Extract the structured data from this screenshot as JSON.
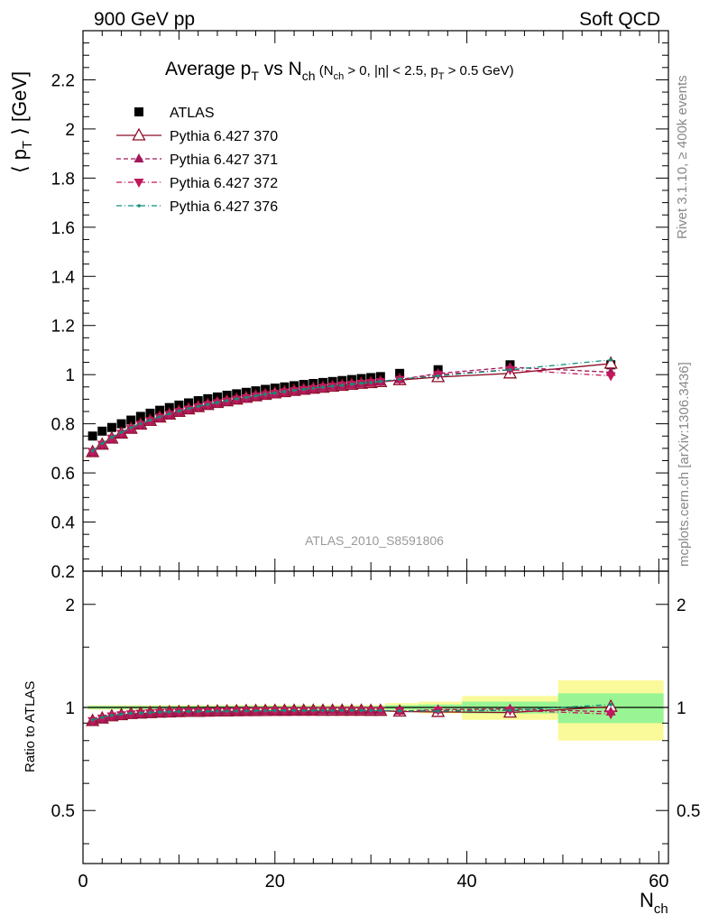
{
  "header": {
    "left": "900 GeV pp",
    "right": "Soft QCD"
  },
  "title": {
    "main": "Average p",
    "main_sub": "T",
    "vs": " vs N",
    "vs_sub": "ch",
    "cuts_open": " (N",
    "cuts_sub1": "ch",
    "cuts_mid": " > 0, |η| < 2.5, p",
    "cuts_sub2": "T",
    "cuts_close": " > 0.5 GeV)"
  },
  "side_labels": {
    "rivet": "Rivet 3.1.10, ≥ 400k events",
    "mcplots": "mcplots.cern.ch [arXiv:1306.3436]"
  },
  "watermark": "ATLAS_2010_S8591806",
  "axes": {
    "main_ylabel_a": "⟨ p",
    "main_ylabel_sub": "T",
    "main_ylabel_b": " ⟩ [GeV]",
    "ratio_ylabel": "Ratio to ATLAS",
    "xlabel": "N",
    "xlabel_sub": "ch",
    "main_yticks": [
      "0.2",
      "0.4",
      "0.6",
      "0.8",
      "1",
      "1.2",
      "1.4",
      "1.6",
      "1.8",
      "2",
      "2.2"
    ],
    "ratio_yticks": [
      "0.5",
      "1",
      "2"
    ],
    "xticks": [
      "0",
      "20",
      "40",
      "60"
    ]
  },
  "colors": {
    "atlas": "#000000",
    "p370": "#8b0d25",
    "p371": "#a3185a",
    "p372": "#c2185b",
    "p376": "#0f8f7a",
    "band_inner": "#99f593",
    "band_outer": "#fbfa9a"
  },
  "chart_data": {
    "type": "scatter",
    "xlim": [
      0,
      61
    ],
    "ylim": [
      0.2,
      2.4
    ],
    "ratio_ylim": [
      0.35,
      2.5
    ],
    "ratio_log": true,
    "legend_position": "top-left",
    "series": [
      {
        "name": "ATLAS",
        "marker": "square",
        "x": [
          1,
          2,
          3,
          4,
          5,
          6,
          7,
          8,
          9,
          10,
          11,
          12,
          13,
          14,
          15,
          16,
          17,
          18,
          19,
          20,
          21,
          22,
          23,
          24,
          25,
          26,
          27,
          28,
          29,
          30,
          31,
          33,
          37,
          44.5,
          55
        ],
        "y": [
          0.75,
          0.77,
          0.785,
          0.8,
          0.815,
          0.83,
          0.843,
          0.855,
          0.866,
          0.876,
          0.885,
          0.894,
          0.902,
          0.909,
          0.916,
          0.922,
          0.928,
          0.934,
          0.94,
          0.945,
          0.95,
          0.955,
          0.96,
          0.964,
          0.968,
          0.972,
          0.976,
          0.98,
          0.984,
          0.988,
          0.992,
          1.005,
          1.02,
          1.04,
          1.04
        ]
      },
      {
        "name": "Pythia 6.427 370",
        "marker": "open-triangle-up",
        "line": "solid",
        "x": [
          1,
          2,
          3,
          4,
          5,
          6,
          7,
          8,
          9,
          10,
          11,
          12,
          13,
          14,
          15,
          16,
          17,
          18,
          19,
          20,
          21,
          22,
          23,
          24,
          25,
          26,
          27,
          28,
          29,
          30,
          31,
          33,
          37,
          44.5,
          55
        ],
        "y": [
          0.685,
          0.715,
          0.74,
          0.76,
          0.78,
          0.797,
          0.812,
          0.826,
          0.838,
          0.849,
          0.859,
          0.868,
          0.877,
          0.885,
          0.892,
          0.899,
          0.906,
          0.912,
          0.918,
          0.924,
          0.929,
          0.934,
          0.939,
          0.943,
          0.947,
          0.951,
          0.955,
          0.959,
          0.963,
          0.966,
          0.97,
          0.978,
          0.99,
          1.005,
          1.045
        ]
      },
      {
        "name": "Pythia 6.427 371",
        "marker": "filled-triangle-up",
        "line": "dashed",
        "x": [
          1,
          2,
          3,
          4,
          5,
          6,
          7,
          8,
          9,
          10,
          11,
          12,
          13,
          14,
          15,
          16,
          17,
          18,
          19,
          20,
          21,
          22,
          23,
          24,
          25,
          26,
          27,
          28,
          29,
          30,
          31,
          33,
          37,
          44.5,
          55
        ],
        "y": [
          0.683,
          0.712,
          0.737,
          0.758,
          0.777,
          0.794,
          0.81,
          0.824,
          0.836,
          0.847,
          0.857,
          0.866,
          0.875,
          0.883,
          0.89,
          0.897,
          0.903,
          0.91,
          0.916,
          0.921,
          0.927,
          0.932,
          0.937,
          0.941,
          0.946,
          0.95,
          0.954,
          0.958,
          0.962,
          0.966,
          0.97,
          0.98,
          1.005,
          1.03,
          1.01
        ]
      },
      {
        "name": "Pythia 6.427 372",
        "marker": "filled-triangle-down",
        "line": "dashdot",
        "x": [
          1,
          2,
          3,
          4,
          5,
          6,
          7,
          8,
          9,
          10,
          11,
          12,
          13,
          14,
          15,
          16,
          17,
          18,
          19,
          20,
          21,
          22,
          23,
          24,
          25,
          26,
          27,
          28,
          29,
          30,
          31,
          33,
          37,
          44.5,
          55
        ],
        "y": [
          0.686,
          0.716,
          0.741,
          0.761,
          0.78,
          0.797,
          0.812,
          0.826,
          0.838,
          0.849,
          0.859,
          0.868,
          0.877,
          0.885,
          0.892,
          0.899,
          0.905,
          0.912,
          0.918,
          0.923,
          0.929,
          0.934,
          0.939,
          0.943,
          0.948,
          0.952,
          0.956,
          0.96,
          0.964,
          0.967,
          0.971,
          0.98,
          1.0,
          1.02,
          0.995
        ]
      },
      {
        "name": "Pythia 6.427 376",
        "marker": "small-dot",
        "line": "dashdot",
        "x": [
          1,
          2,
          3,
          4,
          5,
          6,
          7,
          8,
          9,
          10,
          11,
          12,
          13,
          14,
          15,
          16,
          17,
          18,
          19,
          20,
          21,
          22,
          23,
          24,
          25,
          26,
          27,
          28,
          29,
          30,
          31,
          33,
          37,
          44.5,
          55
        ],
        "y": [
          0.69,
          0.72,
          0.745,
          0.765,
          0.784,
          0.8,
          0.815,
          0.829,
          0.841,
          0.852,
          0.862,
          0.871,
          0.879,
          0.887,
          0.894,
          0.901,
          0.907,
          0.914,
          0.92,
          0.925,
          0.931,
          0.936,
          0.94,
          0.945,
          0.949,
          0.953,
          0.957,
          0.961,
          0.965,
          0.968,
          0.972,
          0.982,
          0.995,
          1.02,
          1.06
        ]
      }
    ],
    "ratio_bands": [
      {
        "x0": 0.5,
        "x1": 31.5,
        "inner": [
          0.99,
          1.01
        ],
        "outer": [
          0.985,
          1.015
        ]
      },
      {
        "x0": 31.5,
        "x1": 35,
        "inner": [
          0.985,
          1.015
        ],
        "outer": [
          0.97,
          1.03
        ]
      },
      {
        "x0": 35,
        "x1": 39.5,
        "inner": [
          0.98,
          1.02
        ],
        "outer": [
          0.96,
          1.04
        ]
      },
      {
        "x0": 39.5,
        "x1": 49.5,
        "inner": [
          0.96,
          1.04
        ],
        "outer": [
          0.92,
          1.08
        ]
      },
      {
        "x0": 49.5,
        "x1": 60.5,
        "inner": [
          0.9,
          1.1
        ],
        "outer": [
          0.8,
          1.2
        ]
      }
    ]
  }
}
